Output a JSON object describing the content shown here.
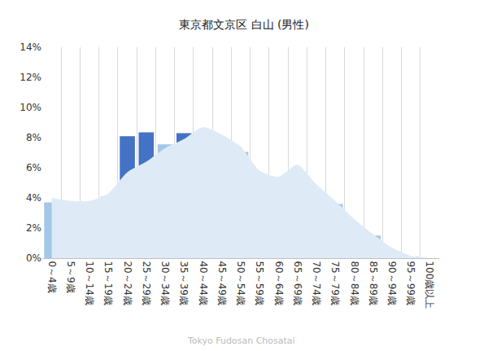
{
  "chart_data": {
    "type": "bar",
    "title": "東京都文京区 白山 (男性)",
    "annotation": "Tokyo Fudosan Chosatai",
    "categories": [
      "0～4歳",
      "5～9歳",
      "10～14歳",
      "15～19歳",
      "20～24歳",
      "25～29歳",
      "30～34歳",
      "35～39歳",
      "40～44歳",
      "45～49歳",
      "50～54歳",
      "55～59歳",
      "60～64歳",
      "65～69歳",
      "70～74歳",
      "75～79歳",
      "80～84歳",
      "85～89歳",
      "90～94歳",
      "95～99歳",
      "100歳以上"
    ],
    "series": [
      {
        "type": "area",
        "color": "#deebf7",
        "values": [
          4.0,
          3.8,
          3.8,
          4.3,
          5.7,
          6.4,
          7.3,
          7.9,
          8.7,
          8.2,
          7.4,
          5.8,
          5.4,
          6.2,
          4.9,
          3.8,
          2.6,
          1.6,
          0.7,
          0.15,
          0.02
        ]
      },
      {
        "type": "bar",
        "colors": [
          "#a3c7e8",
          "#a3c7e8",
          "#a3c7e8",
          "#a3c7e8",
          "#4472c4",
          "#4472c4",
          "#a3c7e8",
          "#4472c4",
          "#a3c7e8",
          "#a3c7e8",
          "#a3c7e8",
          "#a3c7e8",
          "#a3c7e8",
          "#a3c7e8",
          "#a3c7e8",
          "#a3c7e8",
          "#a3c7e8",
          "#a3c7e8",
          "#a3c7e8",
          "#a3c7e8",
          "#a3c7e8"
        ],
        "values": [
          3.7,
          3.5,
          3.4,
          4.1,
          8.1,
          8.35,
          7.55,
          8.3,
          7.9,
          7.2,
          7.05,
          5.2,
          4.95,
          5.4,
          4.1,
          3.6,
          1.95,
          1.5,
          0.45,
          0.08,
          0
        ]
      }
    ],
    "ylim": [
      0,
      14
    ],
    "yticks": [
      {
        "value": 0,
        "label": "0%"
      },
      {
        "value": 2,
        "label": "2%"
      },
      {
        "value": 4,
        "label": "4%"
      },
      {
        "value": 6,
        "label": "6%"
      },
      {
        "value": 8,
        "label": "8%"
      },
      {
        "value": 10,
        "label": "10%"
      },
      {
        "value": 12,
        "label": "12%"
      },
      {
        "value": 14,
        "label": "14%"
      }
    ],
    "grid": true
  }
}
